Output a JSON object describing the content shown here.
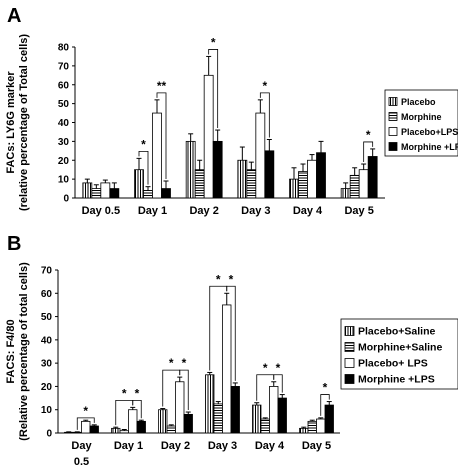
{
  "panels": {
    "a": {
      "letter": "A"
    },
    "b": {
      "letter": "B"
    }
  },
  "chart_data": [
    {
      "type": "bar",
      "panel": "A",
      "ylabel_lines": [
        "FACs: LY6G marker",
        "(relative percentage of Total cells)"
      ],
      "ylim": [
        0,
        80
      ],
      "yticks": [
        0,
        10,
        20,
        30,
        40,
        50,
        60,
        70,
        80
      ],
      "categories": [
        "Day 0.5",
        "Day 1",
        "Day 2",
        "Day 3",
        "Day 4",
        "Day 5"
      ],
      "legend_position": "right",
      "series": [
        {
          "name": "Placebo",
          "values": [
            8,
            15,
            30,
            20,
            10,
            5
          ],
          "errors": [
            2,
            6,
            4,
            7,
            6,
            3
          ]
        },
        {
          "name": "Morphine",
          "values": [
            5,
            4,
            15,
            15,
            14,
            12
          ],
          "errors": [
            2,
            2,
            5,
            4,
            4,
            4
          ]
        },
        {
          "name": "Placebo+LPS",
          "values": [
            8,
            45,
            65,
            45,
            20,
            15
          ],
          "errors": [
            1.5,
            7,
            10,
            7,
            3,
            3
          ]
        },
        {
          "name": "Morphine +LPS",
          "values": [
            5,
            5,
            30,
            25,
            24,
            22
          ],
          "errors": [
            3,
            4,
            6,
            6,
            6,
            4
          ]
        }
      ],
      "annotations": [
        {
          "text": "*",
          "category": 1,
          "from": 0,
          "to": 1
        },
        {
          "text": "**",
          "category": 1,
          "from": 2,
          "to": 3
        },
        {
          "text": "*",
          "category": 2,
          "from": 2,
          "to": 3
        },
        {
          "text": "*",
          "category": 3,
          "from": 2,
          "to": 3
        },
        {
          "text": "*",
          "category": 5,
          "from": 2,
          "to": 3
        }
      ]
    },
    {
      "type": "bar",
      "panel": "B",
      "ylabel_lines": [
        "FACS: F4/80",
        "(Relative percentage of total cells)"
      ],
      "ylim": [
        0,
        70
      ],
      "yticks": [
        0,
        10,
        20,
        30,
        40,
        50,
        60,
        70
      ],
      "categories": [
        [
          "Day",
          "0.5"
        ],
        [
          "Day 1"
        ],
        [
          "Day 2"
        ],
        [
          "Day 3"
        ],
        [
          "Day 4"
        ],
        [
          "Day 5"
        ]
      ],
      "legend_position": "right",
      "series": [
        {
          "name": "Placebo+Saline",
          "values": [
            0.3,
            2,
            10,
            25,
            12,
            2
          ],
          "errors": [
            0.2,
            0.5,
            0.5,
            1,
            1,
            0.5
          ]
        },
        {
          "name": "Morphine+Saline",
          "values": [
            0.3,
            1,
            3,
            12.5,
            6,
            5
          ],
          "errors": [
            0.2,
            0.5,
            0.5,
            1,
            0.5,
            0.5
          ]
        },
        {
          "name": "Placebo+ LPS",
          "values": [
            5,
            10,
            22,
            55,
            20,
            6
          ],
          "errors": [
            0.5,
            1,
            2,
            5,
            2,
            0.5
          ]
        },
        {
          "name": "Morphine +LPS",
          "values": [
            3,
            5,
            8,
            20,
            15,
            12
          ],
          "errors": [
            0.5,
            0.5,
            1,
            1.5,
            1.5,
            1.5
          ]
        }
      ],
      "annotations": [
        {
          "text": "*",
          "category": 0,
          "from": 1,
          "to": 3
        },
        {
          "text": "*",
          "category": 1,
          "from": 0,
          "to": 2
        },
        {
          "text": "*",
          "category": 1,
          "from": 2,
          "to": 3
        },
        {
          "text": "*",
          "category": 2,
          "from": 0,
          "to": 2
        },
        {
          "text": "*",
          "category": 2,
          "from": 2,
          "to": 3
        },
        {
          "text": "*",
          "category": 3,
          "from": 0,
          "to": 2
        },
        {
          "text": "*",
          "category": 3,
          "from": 2,
          "to": 3
        },
        {
          "text": "*",
          "category": 4,
          "from": 0,
          "to": 2
        },
        {
          "text": "*",
          "category": 4,
          "from": 2,
          "to": 3
        },
        {
          "text": "*",
          "category": 5,
          "from": 2,
          "to": 3
        }
      ]
    }
  ]
}
